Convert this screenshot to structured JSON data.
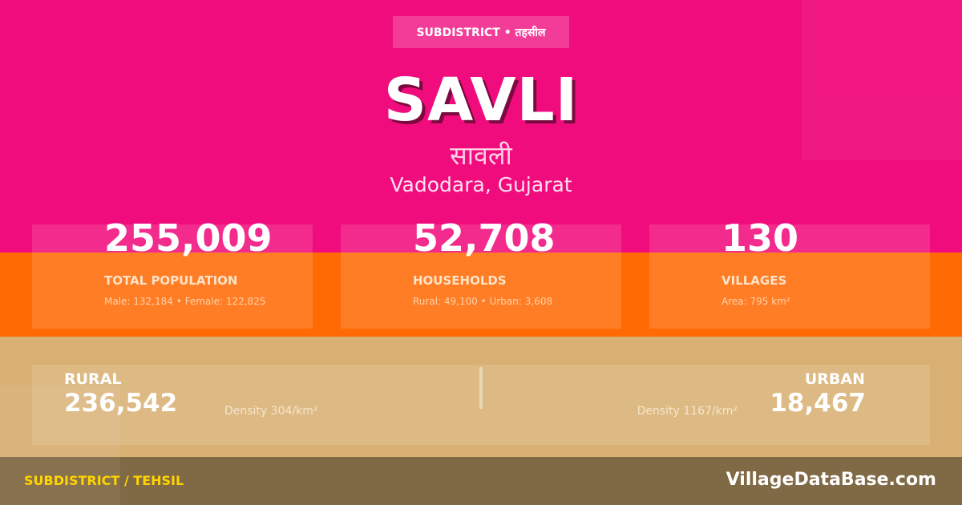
{
  "colors": {
    "pink": "#f00c7d",
    "orange": "#ff6a05",
    "tan": "#d9b073",
    "footer": "#806945",
    "footer_label": "#ffd400"
  },
  "header": {
    "badge": "SUBDISTRICT • तहसील",
    "title": "SAVLI",
    "title_hindi": "सावली",
    "location": "Vadodara, Gujarat"
  },
  "stats": [
    {
      "value": "255,009",
      "label": "TOTAL POPULATION",
      "detail": "Male: 132,184 • Female: 122,825"
    },
    {
      "value": "52,708",
      "label": "HOUSEHOLDS",
      "detail": "Rural: 49,100 • Urban: 3,608"
    },
    {
      "value": "130",
      "label": "VILLAGES",
      "detail": "Area: 795 km²"
    }
  ],
  "rural": {
    "label": "RURAL",
    "value": "236,542",
    "density": "Density 304/km²"
  },
  "urban": {
    "label": "URBAN",
    "value": "18,467",
    "density": "Density 1167/km²"
  },
  "footer": {
    "left": "SUBDISTRICT / TEHSIL",
    "brand": "VillageDataBase.com"
  }
}
